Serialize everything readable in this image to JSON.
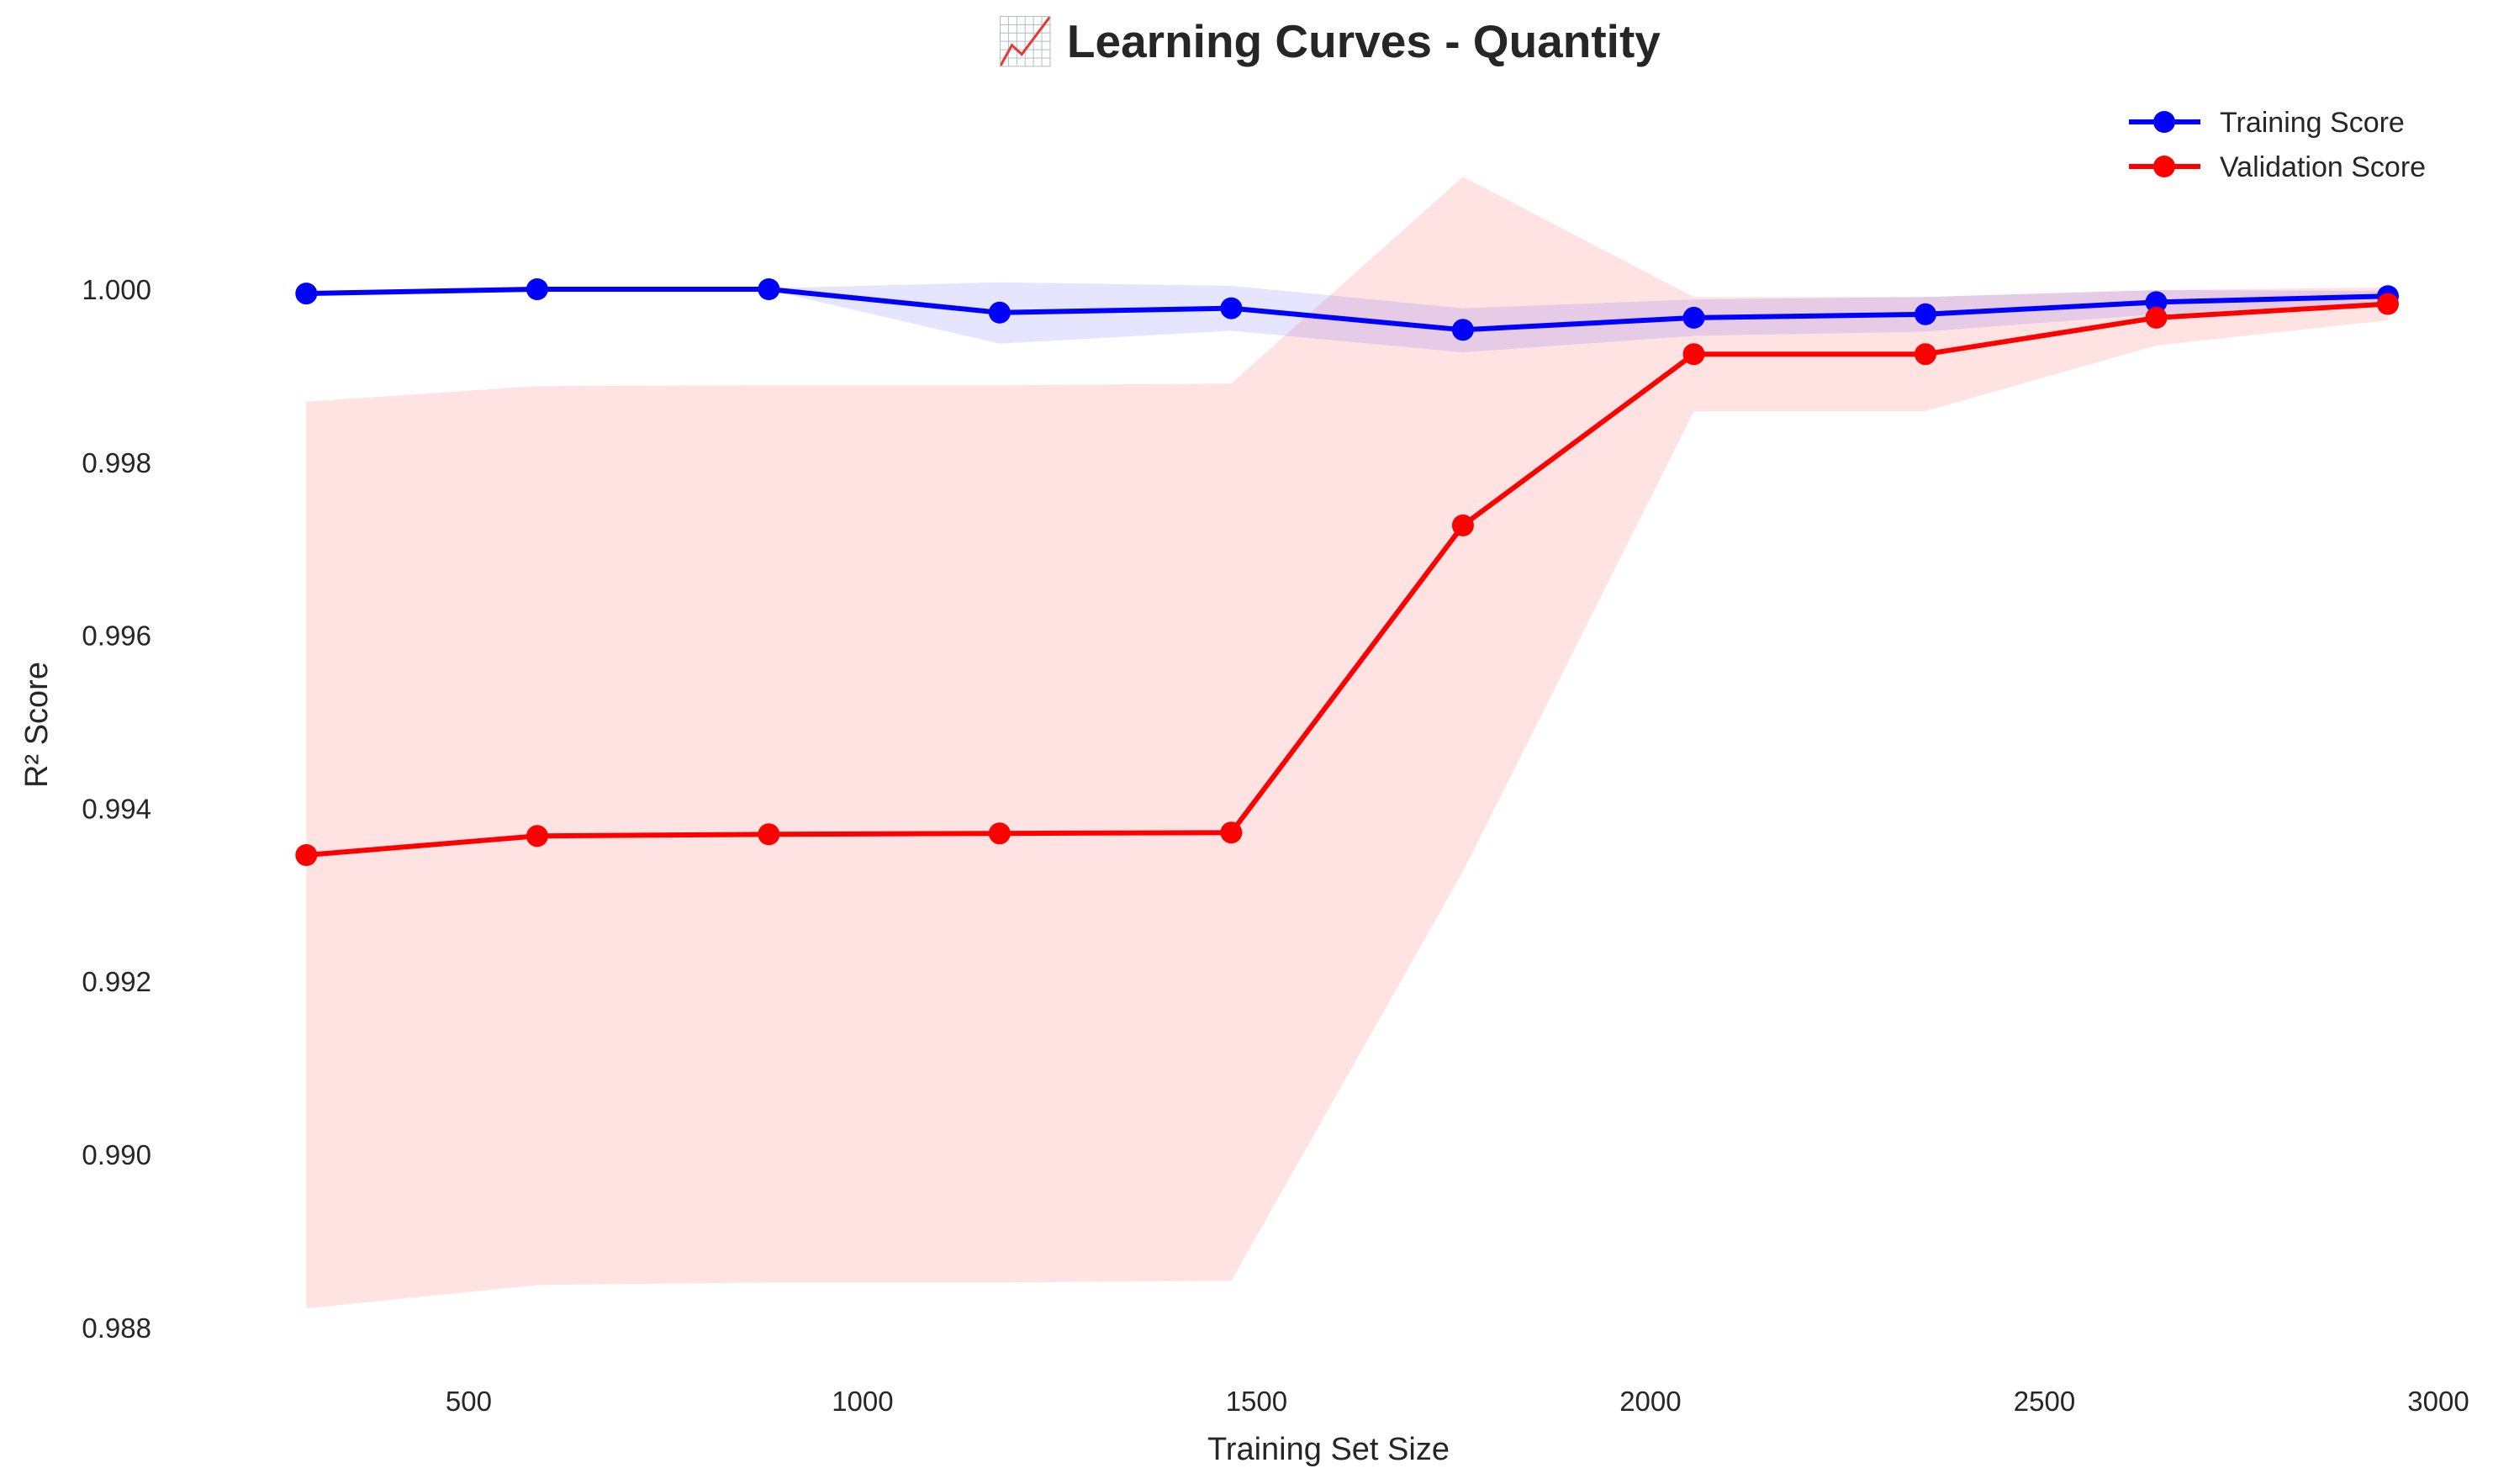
{
  "chart_data": {
    "type": "line",
    "title": "📈 Learning Curves - Quantity",
    "xlabel": "Training Set Size",
    "ylabel": "R² Score",
    "xlim": [
      220,
      3000
    ],
    "ylim": [
      0.9876,
      1.0024
    ],
    "xticks": [
      500,
      1000,
      1500,
      2000,
      2500,
      3000
    ],
    "xtick_labels": [
      "500",
      "1000",
      "1500",
      "2000",
      "2500",
      "3000"
    ],
    "yticks": [
      0.988,
      0.99,
      0.992,
      0.994,
      0.996,
      0.998,
      1.0
    ],
    "ytick_labels": [
      "0.988",
      "0.990",
      "0.992",
      "0.994",
      "0.996",
      "0.998",
      "1.000"
    ],
    "grid": false,
    "legend_position": "top-right",
    "x": [
      294,
      587,
      881,
      1174,
      1468,
      1762,
      2055,
      2349,
      2642,
      2936
    ],
    "series": [
      {
        "name": "Training Score",
        "color": "#0000ff",
        "values": [
          0.99995,
          1.0,
          1.0,
          0.99973,
          0.99978,
          0.99953,
          0.99967,
          0.99971,
          0.99985,
          0.99992
        ],
        "band_lower": [
          0.99995,
          0.99999,
          0.99999,
          0.99937,
          0.99952,
          0.99927,
          0.99946,
          0.99951,
          0.99971,
          0.99986
        ],
        "band_upper": [
          0.99995,
          1.00001,
          1.00001,
          1.00008,
          1.00004,
          0.99978,
          0.99988,
          0.99991,
          0.99999,
          0.99998
        ],
        "band_color": "#0000ff"
      },
      {
        "name": "Validation Score",
        "color": "#ff0000",
        "values": [
          0.99346,
          0.99368,
          0.9937,
          0.99371,
          0.99372,
          0.99727,
          0.99925,
          0.99925,
          0.99967,
          0.99983
        ],
        "band_lower": [
          0.98822,
          0.98849,
          0.98852,
          0.98852,
          0.98854,
          0.99327,
          0.99859,
          0.99859,
          0.99935,
          0.99964
        ],
        "band_upper": [
          0.9987,
          0.99888,
          0.99889,
          0.99889,
          0.99891,
          1.0013,
          0.99991,
          0.99991,
          0.99999,
          1.00002
        ],
        "band_color": "#ff0000"
      }
    ]
  }
}
